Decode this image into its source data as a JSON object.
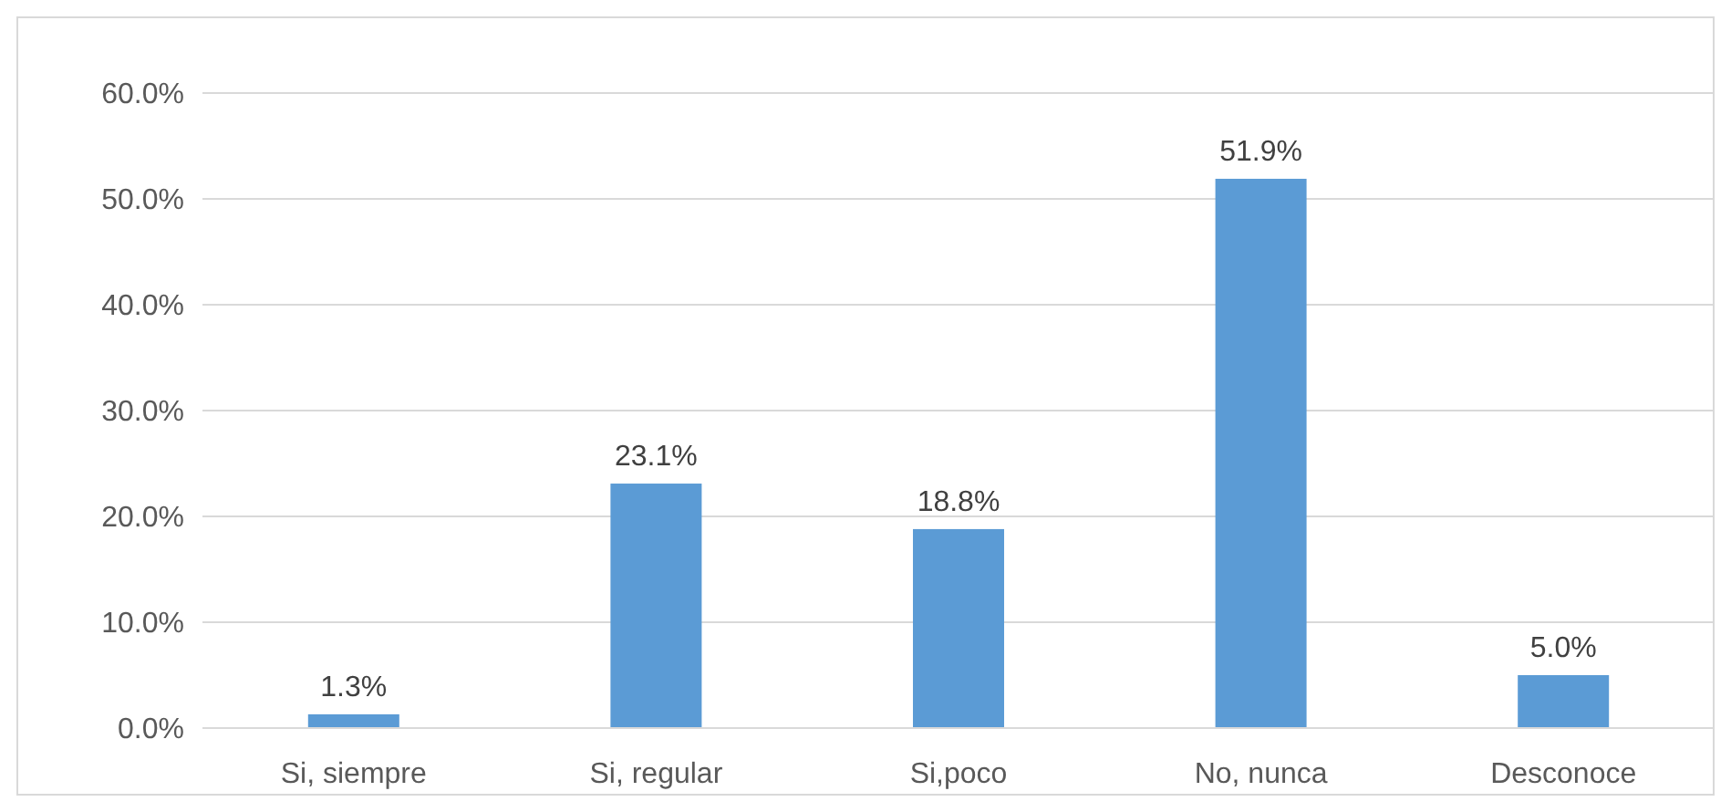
{
  "chart_data": {
    "type": "bar",
    "categories": [
      "Si, siempre",
      "Si, regular",
      "Si,poco",
      "No, nunca",
      "Desconoce"
    ],
    "values": [
      1.3,
      23.1,
      18.8,
      51.9,
      5.0
    ],
    "value_labels": [
      "1.3%",
      "23.1%",
      "18.8%",
      "51.9%",
      "5.0%"
    ],
    "color": "#5b9bd5",
    "ylim": [
      0,
      60
    ],
    "yticks": [
      {
        "value": 0,
        "label": "0.0%"
      },
      {
        "value": 10,
        "label": "10.0%"
      },
      {
        "value": 20,
        "label": "20.0%"
      },
      {
        "value": 30,
        "label": "30.0%"
      },
      {
        "value": 40,
        "label": "40.0%"
      },
      {
        "value": 50,
        "label": "50.0%"
      },
      {
        "value": 60,
        "label": "60.0%"
      }
    ],
    "grid": "y"
  }
}
